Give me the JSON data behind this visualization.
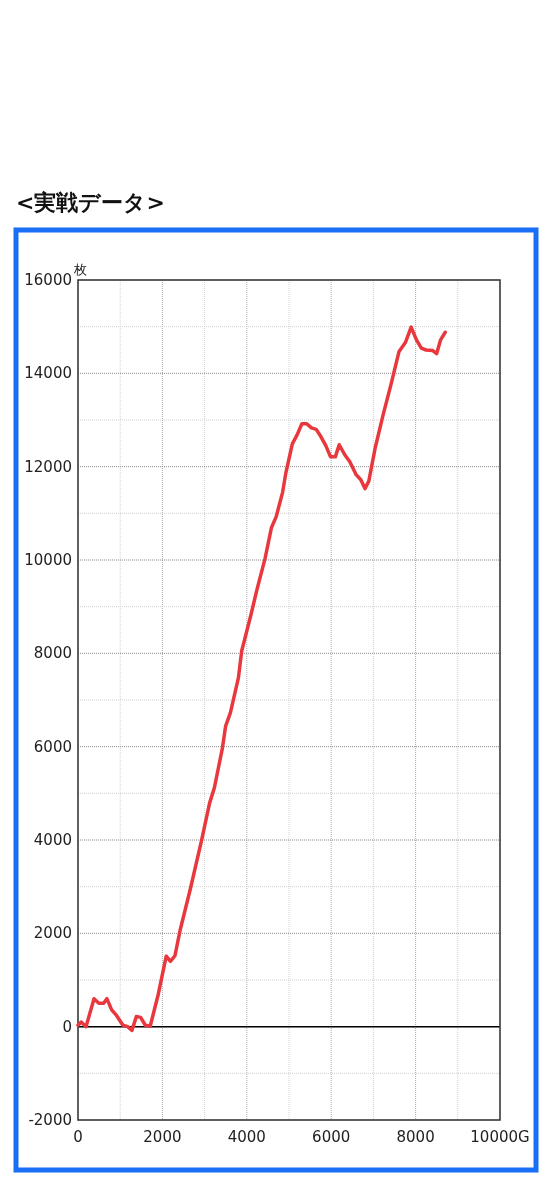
{
  "chart_data": {
    "type": "line",
    "title": "<実戦データ>",
    "ylabel": "枚",
    "x": [
      0,
      76,
      190,
      380,
      494,
      608,
      684,
      798,
      913,
      1065,
      1179,
      1278,
      1384,
      1483,
      1597,
      1711,
      1901,
      2091,
      2190,
      2297,
      2418,
      2662,
      2928,
      3118,
      3232,
      3422,
      3498,
      3612,
      3802,
      3879,
      4091,
      4242,
      4432,
      4583,
      4697,
      4848,
      4928,
      5079,
      5192,
      5306,
      5419,
      5532,
      5645,
      5758,
      5872,
      5985,
      6098,
      6189,
      6325,
      6438,
      6589,
      6702,
      6800,
      6891,
      7042,
      7230,
      7419,
      7608,
      7758,
      7894,
      8023,
      8136,
      8249,
      8400,
      8498,
      8589,
      8702
    ],
    "series": [
      {
        "color": "#e8383d",
        "values": [
          30,
          100,
          0,
          600,
          500,
          500,
          600,
          360,
          240,
          30,
          0,
          -80,
          220,
          200,
          30,
          10,
          690,
          1510,
          1400,
          1520,
          2060,
          2950,
          3990,
          4790,
          5120,
          5970,
          6440,
          6730,
          7480,
          8050,
          8800,
          9370,
          10030,
          10690,
          10930,
          11450,
          11880,
          12490,
          12680,
          12920,
          12920,
          12830,
          12800,
          12640,
          12450,
          12210,
          12210,
          12470,
          12250,
          12110,
          11830,
          11720,
          11530,
          11690,
          12400,
          13110,
          13770,
          14470,
          14660,
          14990,
          14710,
          14540,
          14500,
          14490,
          14420,
          14710,
          14880
        ]
      }
    ],
    "xlim": [
      0,
      10000
    ],
    "ylim": [
      -2000,
      16000
    ],
    "xticks": [
      0,
      {
        "value": 1000,
        "label": null
      },
      2000,
      {
        "value": 3000,
        "label": null
      },
      4000,
      {
        "value": 5000,
        "label": null
      },
      6000,
      {
        "value": 7000,
        "label": null
      },
      8000,
      {
        "value": 9000,
        "label": null
      },
      {
        "value": 10000,
        "label": "10000G"
      }
    ],
    "yticks": [
      -2000,
      {
        "value": -1000,
        "label": null
      },
      0,
      {
        "value": 1000,
        "label": null
      },
      2000,
      {
        "value": 3000,
        "label": null
      },
      4000,
      {
        "value": 5000,
        "label": null
      },
      6000,
      {
        "value": 7000,
        "label": null
      },
      8000,
      {
        "value": 9000,
        "label": null
      },
      10000,
      {
        "value": 11000,
        "label": null
      },
      12000,
      {
        "value": 13000,
        "label": null
      },
      14000,
      {
        "value": 15000,
        "label": null
      },
      16000
    ],
    "ref_lines": [
      {
        "axis": "y",
        "value": 0,
        "color": "#000000"
      }
    ],
    "grid": true,
    "line_style": "solid",
    "marker": "none"
  }
}
